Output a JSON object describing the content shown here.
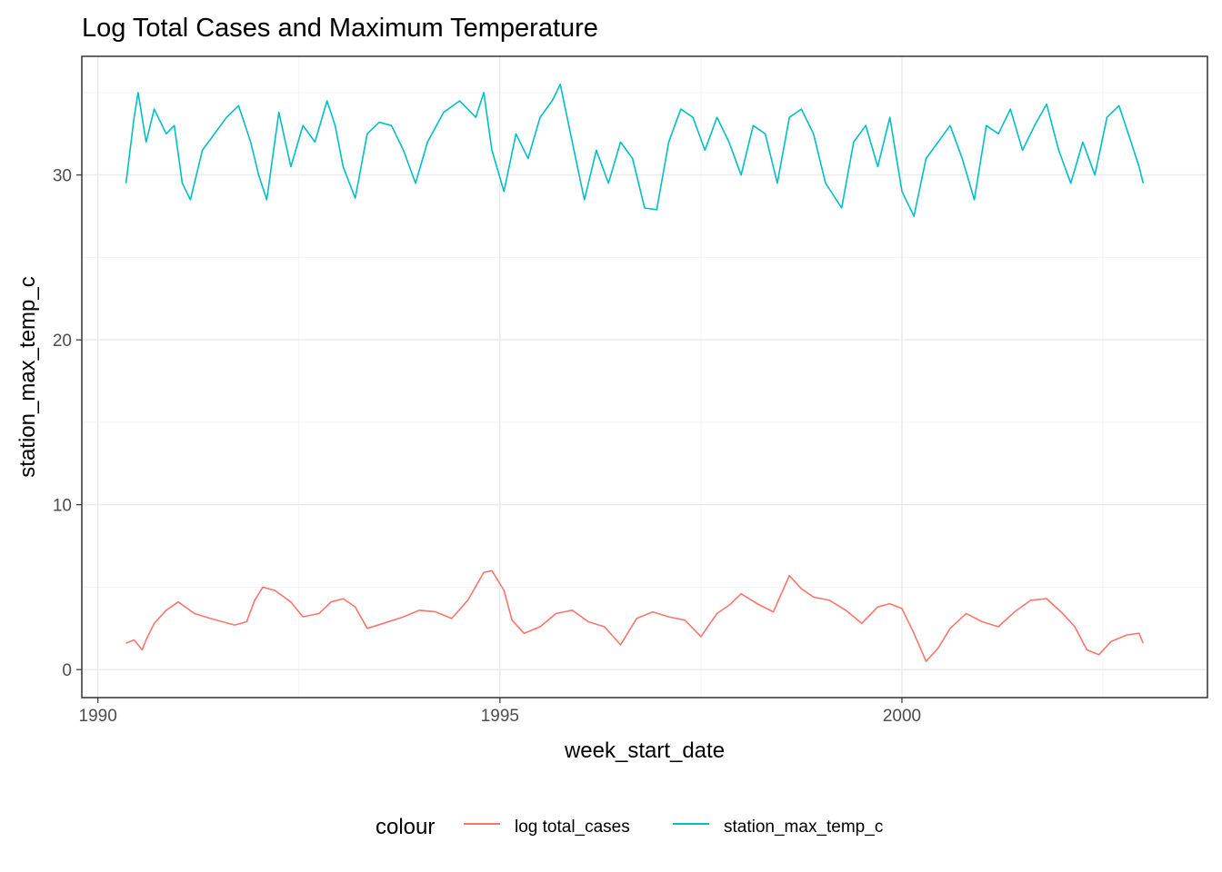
{
  "chart_data": {
    "type": "line",
    "title": "Log Total Cases and Maximum Temperature",
    "xlabel": "week_start_date",
    "ylabel": "station_max_temp_c",
    "x_ticks": [
      1990,
      1995,
      2000
    ],
    "y_ticks": [
      0,
      10,
      20,
      30
    ],
    "xlim": [
      1989.8,
      2003.8
    ],
    "ylim": [
      -1.7,
      37.2
    ],
    "grid": true,
    "legend_title": "colour",
    "legend_position": "bottom",
    "series": [
      {
        "name": "log total_cases",
        "color": "#F8766D",
        "x": [
          1990.35,
          1990.45,
          1990.55,
          1990.6,
          1990.7,
          1990.85,
          1991.0,
          1991.2,
          1991.4,
          1991.55,
          1991.7,
          1991.85,
          1991.95,
          1992.05,
          1992.2,
          1992.4,
          1992.55,
          1992.75,
          1992.9,
          1993.05,
          1993.2,
          1993.35,
          1993.55,
          1993.8,
          1994.0,
          1994.2,
          1994.4,
          1994.6,
          1994.8,
          1994.9,
          1995.05,
          1995.15,
          1995.3,
          1995.5,
          1995.7,
          1995.9,
          1996.1,
          1996.3,
          1996.5,
          1996.7,
          1996.9,
          1997.1,
          1997.3,
          1997.5,
          1997.7,
          1997.85,
          1998.0,
          1998.2,
          1998.4,
          1998.6,
          1998.75,
          1998.9,
          1999.1,
          1999.3,
          1999.5,
          1999.7,
          1999.85,
          2000.0,
          2000.15,
          2000.3,
          2000.45,
          2000.6,
          2000.8,
          2001.0,
          2001.2,
          2001.4,
          2001.6,
          2001.8,
          2002.0,
          2002.15,
          2002.3,
          2002.45,
          2002.6,
          2002.8,
          2002.95,
          2003.0
        ],
        "y": [
          1.6,
          1.8,
          1.2,
          1.8,
          2.8,
          3.6,
          4.1,
          3.4,
          3.1,
          2.9,
          2.7,
          2.9,
          4.2,
          5.0,
          4.8,
          4.1,
          3.2,
          3.4,
          4.1,
          4.3,
          3.8,
          2.5,
          2.8,
          3.2,
          3.6,
          3.5,
          3.1,
          4.2,
          5.9,
          6.0,
          4.8,
          3.0,
          2.2,
          2.6,
          3.4,
          3.6,
          2.9,
          2.6,
          1.5,
          3.1,
          3.5,
          3.2,
          3.0,
          2.0,
          3.4,
          3.9,
          4.6,
          4.0,
          3.5,
          5.7,
          4.9,
          4.4,
          4.2,
          3.6,
          2.8,
          3.8,
          4.0,
          3.7,
          2.2,
          0.5,
          1.3,
          2.5,
          3.4,
          2.9,
          2.6,
          3.5,
          4.2,
          4.3,
          3.4,
          2.6,
          1.2,
          0.9,
          1.7,
          2.1,
          2.2,
          1.6
        ]
      },
      {
        "name": "station_max_temp_c",
        "color": "#00BFC4",
        "x": [
          1990.35,
          1990.45,
          1990.5,
          1990.6,
          1990.7,
          1990.85,
          1990.95,
          1991.05,
          1991.15,
          1991.3,
          1991.45,
          1991.6,
          1991.75,
          1991.9,
          1992.0,
          1992.1,
          1992.25,
          1992.4,
          1992.55,
          1992.7,
          1992.85,
          1992.95,
          1993.05,
          1993.2,
          1993.35,
          1993.5,
          1993.65,
          1993.8,
          1993.95,
          1994.1,
          1994.3,
          1994.5,
          1994.7,
          1994.8,
          1994.9,
          1995.05,
          1995.2,
          1995.35,
          1995.5,
          1995.65,
          1995.75,
          1995.9,
          1996.05,
          1996.2,
          1996.35,
          1996.5,
          1996.65,
          1996.8,
          1996.95,
          1997.1,
          1997.25,
          1997.4,
          1997.55,
          1997.7,
          1997.85,
          1998.0,
          1998.15,
          1998.3,
          1998.45,
          1998.6,
          1998.75,
          1998.9,
          1999.05,
          1999.25,
          1999.4,
          1999.55,
          1999.7,
          1999.85,
          2000.0,
          2000.15,
          2000.3,
          2000.45,
          2000.6,
          2000.75,
          2000.9,
          2001.05,
          2001.2,
          2001.35,
          2001.5,
          2001.65,
          2001.8,
          2001.95,
          2002.1,
          2002.25,
          2002.4,
          2002.55,
          2002.7,
          2002.85,
          2002.95,
          2003.0
        ],
        "y": [
          29.5,
          33.5,
          35.0,
          32.0,
          34.0,
          32.5,
          33.0,
          29.5,
          28.5,
          31.5,
          32.5,
          33.5,
          34.2,
          32.0,
          30.0,
          28.5,
          33.8,
          30.5,
          33.0,
          32.0,
          34.5,
          33.0,
          30.5,
          28.6,
          32.5,
          33.2,
          33.0,
          31.5,
          29.5,
          32.0,
          33.8,
          34.5,
          33.5,
          35.0,
          31.5,
          29.0,
          32.5,
          31.0,
          33.5,
          34.5,
          35.5,
          32.0,
          28.5,
          31.5,
          29.5,
          32.0,
          31.0,
          28.0,
          27.9,
          32.0,
          34.0,
          33.5,
          31.5,
          33.5,
          32.0,
          30.0,
          33.0,
          32.5,
          29.5,
          33.5,
          34.0,
          32.5,
          29.5,
          28.0,
          32.0,
          33.0,
          30.5,
          33.5,
          29.0,
          27.5,
          31.0,
          32.0,
          33.0,
          31.0,
          28.5,
          33.0,
          32.5,
          34.0,
          31.5,
          33.0,
          34.3,
          31.5,
          29.5,
          32.0,
          30.0,
          33.5,
          34.2,
          32.0,
          30.5,
          29.5
        ]
      }
    ]
  }
}
